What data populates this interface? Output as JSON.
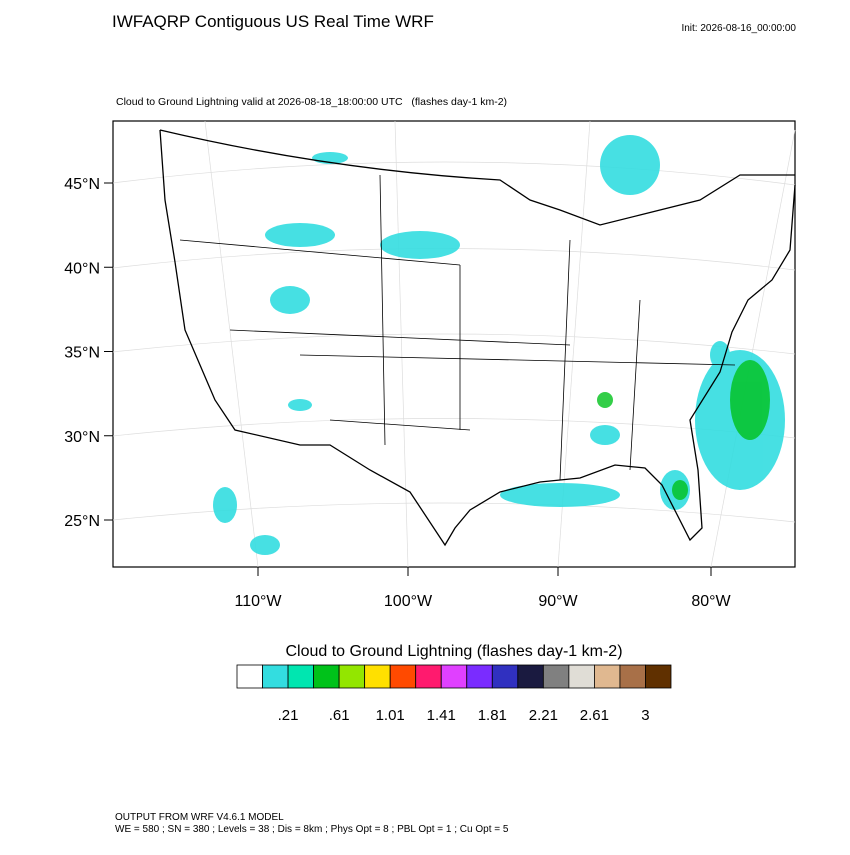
{
  "header": {
    "title": "IWFAQRP Contiguous US Real Time WRF",
    "init": "Init: 2026-08-16_00:00:00"
  },
  "map": {
    "subtitle": "Cloud to Ground Lightning valid at 2026-08-18_18:00:00 UTC   (flashes day-1 km-2)",
    "lat_labels": [
      "45°N",
      "40°N",
      "35°N",
      "30°N",
      "25°N"
    ],
    "lon_labels": [
      "110°W",
      "100°W",
      "90°W",
      "80°W"
    ]
  },
  "colorbar": {
    "title": "Cloud to Ground Lightning  (flashes day-1 km-2)",
    "colors": [
      "#ffffff",
      "#33dde0",
      "#00e6b0",
      "#00c21a",
      "#93e600",
      "#ffe000",
      "#ff4a00",
      "#ff1a6e",
      "#e040ff",
      "#7a2cff",
      "#3030c0",
      "#1a1a40",
      "#808080",
      "#e0ddd6",
      "#e0b890",
      "#a87048",
      "#603000"
    ],
    "labels": [
      ".21",
      ".61",
      "1.01",
      "1.41",
      "1.81",
      "2.21",
      "2.61",
      "3"
    ]
  },
  "footer": {
    "lines": [
      "OUTPUT FROM WRF V4.6.1 MODEL",
      "WE = 580 ; SN = 380 ; Levels = 38 ; Dis = 8km ; Phys Opt = 8 ; PBL Opt = 1 ; Cu Opt = 5"
    ]
  }
}
